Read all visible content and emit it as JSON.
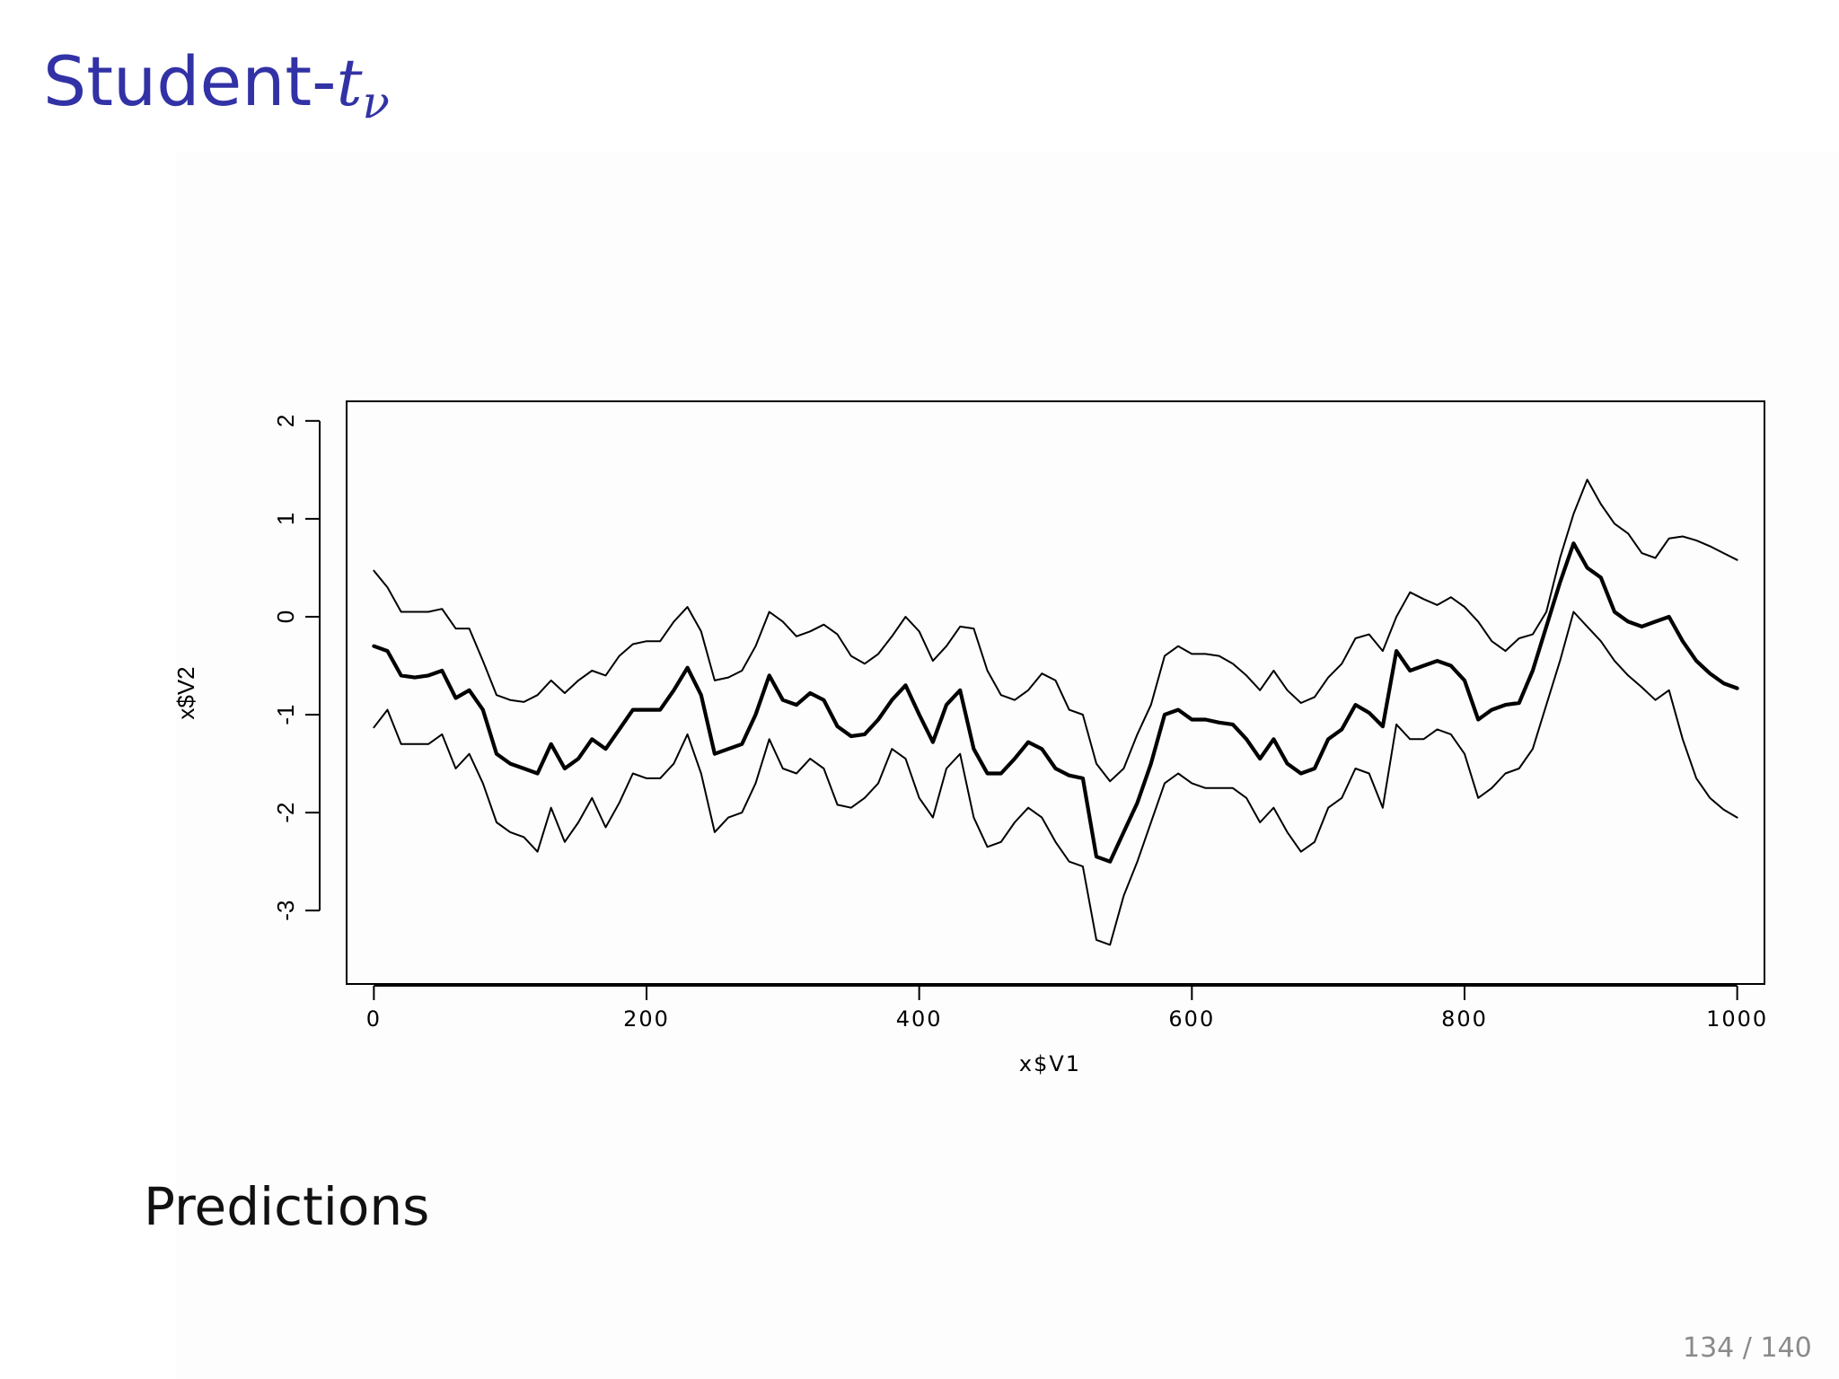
{
  "slide": {
    "title_prefix": "Student-",
    "title_symbol": "t",
    "title_subscript": "ν",
    "caption": "Predictions",
    "page_number": "134 / 140"
  },
  "chart_data": {
    "type": "line",
    "title": "",
    "xlabel": "x$V1",
    "ylabel": "x$V2",
    "xlim": [
      -20,
      1020
    ],
    "ylim": [
      -3.75,
      2.2
    ],
    "xticks": [
      0,
      200,
      400,
      600,
      800,
      1000
    ],
    "xtick_labels": [
      "0",
      "200",
      "400",
      "600",
      "800",
      "1000"
    ],
    "yticks": [
      -3,
      -2,
      -1,
      0,
      1,
      2
    ],
    "ytick_labels": [
      "-3",
      "-2",
      "-1",
      "0",
      "1",
      "2"
    ],
    "grid": false,
    "legend": "none",
    "line_color": "#000000",
    "series": [
      {
        "style": "upper",
        "x": [
          0,
          10,
          20,
          30,
          40,
          50,
          60,
          70,
          80,
          90,
          100,
          110,
          120,
          130,
          140,
          150,
          160,
          170,
          180,
          190,
          200,
          210,
          220,
          230,
          240,
          250,
          260,
          270,
          280,
          290,
          300,
          310,
          320,
          330,
          340,
          350,
          360,
          370,
          380,
          390,
          400,
          410,
          420,
          430,
          440,
          450,
          460,
          470,
          480,
          490,
          500,
          510,
          520,
          530,
          540,
          550,
          560,
          570,
          580,
          590,
          600,
          610,
          620,
          630,
          640,
          650,
          660,
          670,
          680,
          690,
          700,
          710,
          720,
          730,
          740,
          750,
          760,
          770,
          780,
          790,
          800,
          810,
          820,
          830,
          840,
          850,
          860,
          870,
          880,
          890,
          900,
          910,
          920,
          930,
          940,
          950,
          960,
          970,
          980,
          990,
          1000
        ],
        "y": [
          0.47,
          0.3,
          0.05,
          0.05,
          0.05,
          0.08,
          -0.12,
          -0.12,
          -0.45,
          -0.8,
          -0.85,
          -0.87,
          -0.8,
          -0.65,
          -0.78,
          -0.65,
          -0.55,
          -0.6,
          -0.4,
          -0.28,
          -0.25,
          -0.25,
          -0.05,
          0.1,
          -0.15,
          -0.65,
          -0.62,
          -0.55,
          -0.3,
          0.05,
          -0.05,
          -0.2,
          -0.15,
          -0.08,
          -0.18,
          -0.4,
          -0.48,
          -0.38,
          -0.2,
          0.0,
          -0.15,
          -0.45,
          -0.3,
          -0.1,
          -0.12,
          -0.55,
          -0.8,
          -0.85,
          -0.75,
          -0.58,
          -0.65,
          -0.95,
          -1.0,
          -1.5,
          -1.68,
          -1.55,
          -1.2,
          -0.9,
          -0.4,
          -0.3,
          -0.38,
          -0.38,
          -0.4,
          -0.48,
          -0.6,
          -0.75,
          -0.55,
          -0.75,
          -0.88,
          -0.82,
          -0.62,
          -0.48,
          -0.22,
          -0.18,
          -0.35,
          0.0,
          0.25,
          0.18,
          0.12,
          0.2,
          0.1,
          -0.05,
          -0.25,
          -0.35,
          -0.22,
          -0.18,
          0.05,
          0.6,
          1.05,
          1.4,
          1.15,
          0.95,
          0.85,
          0.65,
          0.6,
          0.8,
          0.82,
          0.78,
          0.72,
          0.65,
          0.58
        ]
      },
      {
        "style": "mean",
        "x": [
          0,
          10,
          20,
          30,
          40,
          50,
          60,
          70,
          80,
          90,
          100,
          110,
          120,
          130,
          140,
          150,
          160,
          170,
          180,
          190,
          200,
          210,
          220,
          230,
          240,
          250,
          260,
          270,
          280,
          290,
          300,
          310,
          320,
          330,
          340,
          350,
          360,
          370,
          380,
          390,
          400,
          410,
          420,
          430,
          440,
          450,
          460,
          470,
          480,
          490,
          500,
          510,
          520,
          530,
          540,
          550,
          560,
          570,
          580,
          590,
          600,
          610,
          620,
          630,
          640,
          650,
          660,
          670,
          680,
          690,
          700,
          710,
          720,
          730,
          740,
          750,
          760,
          770,
          780,
          790,
          800,
          810,
          820,
          830,
          840,
          850,
          860,
          870,
          880,
          890,
          900,
          910,
          920,
          930,
          940,
          950,
          960,
          970,
          980,
          990,
          1000
        ],
        "y": [
          -0.3,
          -0.35,
          -0.6,
          -0.62,
          -0.6,
          -0.55,
          -0.83,
          -0.75,
          -0.95,
          -1.4,
          -1.5,
          -1.55,
          -1.6,
          -1.3,
          -1.55,
          -1.45,
          -1.25,
          -1.35,
          -1.15,
          -0.95,
          -0.95,
          -0.95,
          -0.75,
          -0.52,
          -0.8,
          -1.4,
          -1.35,
          -1.3,
          -1.0,
          -0.6,
          -0.85,
          -0.9,
          -0.78,
          -0.85,
          -1.12,
          -1.22,
          -1.2,
          -1.05,
          -0.85,
          -0.7,
          -1.0,
          -1.28,
          -0.9,
          -0.75,
          -1.35,
          -1.6,
          -1.6,
          -1.45,
          -1.28,
          -1.35,
          -1.55,
          -1.62,
          -1.65,
          -2.45,
          -2.5,
          -2.2,
          -1.9,
          -1.5,
          -1.0,
          -0.95,
          -1.05,
          -1.05,
          -1.08,
          -1.1,
          -1.25,
          -1.45,
          -1.25,
          -1.5,
          -1.6,
          -1.55,
          -1.25,
          -1.15,
          -0.9,
          -0.98,
          -1.12,
          -0.35,
          -0.55,
          -0.5,
          -0.45,
          -0.5,
          -0.65,
          -1.05,
          -0.95,
          -0.9,
          -0.88,
          -0.55,
          -0.1,
          0.35,
          0.75,
          0.5,
          0.4,
          0.05,
          -0.05,
          -0.1,
          -0.05,
          0.0,
          -0.25,
          -0.45,
          -0.58,
          -0.68,
          -0.73
        ]
      },
      {
        "style": "lower",
        "x": [
          0,
          10,
          20,
          30,
          40,
          50,
          60,
          70,
          80,
          90,
          100,
          110,
          120,
          130,
          140,
          150,
          160,
          170,
          180,
          190,
          200,
          210,
          220,
          230,
          240,
          250,
          260,
          270,
          280,
          290,
          300,
          310,
          320,
          330,
          340,
          350,
          360,
          370,
          380,
          390,
          400,
          410,
          420,
          430,
          440,
          450,
          460,
          470,
          480,
          490,
          500,
          510,
          520,
          530,
          540,
          550,
          560,
          570,
          580,
          590,
          600,
          610,
          620,
          630,
          640,
          650,
          660,
          670,
          680,
          690,
          700,
          710,
          720,
          730,
          740,
          750,
          760,
          770,
          780,
          790,
          800,
          810,
          820,
          830,
          840,
          850,
          860,
          870,
          880,
          890,
          900,
          910,
          920,
          930,
          940,
          950,
          960,
          970,
          980,
          990,
          1000
        ],
        "y": [
          -1.13,
          -0.95,
          -1.3,
          -1.3,
          -1.3,
          -1.2,
          -1.55,
          -1.4,
          -1.7,
          -2.1,
          -2.2,
          -2.25,
          -2.4,
          -1.95,
          -2.3,
          -2.1,
          -1.85,
          -2.15,
          -1.9,
          -1.6,
          -1.65,
          -1.65,
          -1.5,
          -1.2,
          -1.6,
          -2.2,
          -2.05,
          -2.0,
          -1.7,
          -1.25,
          -1.55,
          -1.6,
          -1.45,
          -1.55,
          -1.92,
          -1.95,
          -1.85,
          -1.7,
          -1.35,
          -1.45,
          -1.85,
          -2.05,
          -1.55,
          -1.4,
          -2.05,
          -2.35,
          -2.3,
          -2.1,
          -1.95,
          -2.05,
          -2.3,
          -2.5,
          -2.55,
          -3.3,
          -3.35,
          -2.85,
          -2.5,
          -2.1,
          -1.7,
          -1.6,
          -1.7,
          -1.75,
          -1.75,
          -1.75,
          -1.85,
          -2.1,
          -1.95,
          -2.2,
          -2.4,
          -2.3,
          -1.95,
          -1.85,
          -1.55,
          -1.6,
          -1.95,
          -1.1,
          -1.25,
          -1.25,
          -1.15,
          -1.2,
          -1.4,
          -1.85,
          -1.75,
          -1.6,
          -1.55,
          -1.35,
          -0.9,
          -0.45,
          0.05,
          -0.1,
          -0.25,
          -0.45,
          -0.6,
          -0.72,
          -0.85,
          -0.75,
          -1.25,
          -1.65,
          -1.85,
          -1.97,
          -2.05
        ]
      }
    ]
  }
}
